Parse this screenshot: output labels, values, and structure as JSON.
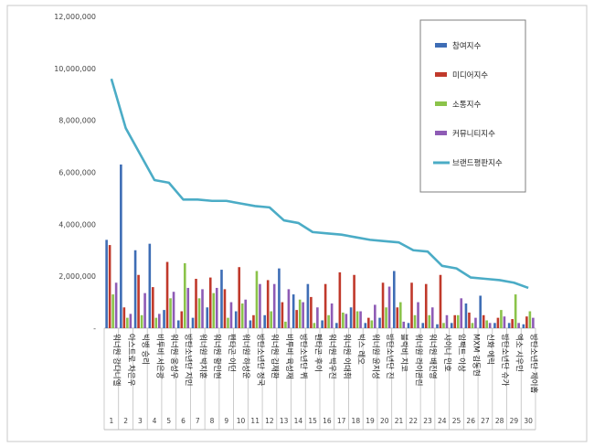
{
  "chart_data": {
    "type": "bar",
    "categories": [
      "워너원 강다니엘",
      "아스트로 차은우",
      "빅뱅 승리",
      "비투비 서은광",
      "워너원 옹성우",
      "방탄소년단 지민",
      "워너원 박지훈",
      "워너원 황민현",
      "펜타곤 이던",
      "워너원 하성운",
      "방탄소년단 정국",
      "워너원 김재환",
      "비투비 육성재",
      "방탄소년단 뷔",
      "펜타곤 후이",
      "워너원 박우진",
      "워너원 이대휘",
      "빅스 레오",
      "워너원 윤지성",
      "방탄소년단 진",
      "블락비 지코",
      "워너원 라이관린",
      "워너원 배진영",
      "샤이니 민호",
      "임팩트 이상",
      "MXM 김동현",
      "신화 에릭",
      "방탄소년단 슈가",
      "엑소 시우민",
      "방탄소년단 제이홉"
    ],
    "indices": [
      "1",
      "2",
      "3",
      "4",
      "5",
      "6",
      "7",
      "8",
      "9",
      "10",
      "11",
      "12",
      "13",
      "14",
      "15",
      "16",
      "17",
      "18",
      "19",
      "20",
      "21",
      "22",
      "23",
      "24",
      "25",
      "26",
      "27",
      "28",
      "29",
      "30"
    ],
    "ylim": [
      0,
      12000000
    ],
    "yticks": [
      "-",
      "2,000,000",
      "4,000,000",
      "6,000,000",
      "8,000,000",
      "10,000,000",
      "12,000,000"
    ],
    "ytick_values": [
      0,
      2000000,
      4000000,
      6000000,
      8000000,
      10000000,
      12000000
    ],
    "series": [
      {
        "name": "참여지수",
        "kind": "bar",
        "color": "#3e6db5",
        "values": [
          3400000,
          6300000,
          3000000,
          3250000,
          700000,
          300000,
          400000,
          800000,
          2250000,
          650000,
          300000,
          500000,
          2300000,
          1300000,
          1700000,
          300000,
          200000,
          800000,
          200000,
          400000,
          2200000,
          200000,
          200000,
          150000,
          200000,
          950000,
          1250000,
          200000,
          200000,
          150000
        ]
      },
      {
        "name": "미디어지수",
        "kind": "bar",
        "color": "#c0392b",
        "values": [
          3200000,
          800000,
          2050000,
          1580000,
          2550000,
          650000,
          1900000,
          1950000,
          1500000,
          2350000,
          500000,
          1850000,
          1000000,
          700000,
          1200000,
          1700000,
          2150000,
          2050000,
          400000,
          1750000,
          800000,
          1750000,
          1700000,
          2050000,
          500000,
          600000,
          500000,
          400000,
          350000,
          450000
        ]
      },
      {
        "name": "소통지수",
        "kind": "bar",
        "color": "#8bc34a",
        "values": [
          1300000,
          400000,
          500000,
          400000,
          1150000,
          2500000,
          1150000,
          1350000,
          400000,
          950000,
          2200000,
          650000,
          250000,
          1100000,
          200000,
          500000,
          600000,
          650000,
          300000,
          800000,
          1000000,
          500000,
          500000,
          200000,
          500000,
          200000,
          300000,
          700000,
          1300000,
          650000
        ]
      },
      {
        "name": "커뮤니티지수",
        "kind": "bar",
        "color": "#8e5bb5",
        "values": [
          1750000,
          550000,
          1350000,
          550000,
          1400000,
          1550000,
          1500000,
          1550000,
          1000000,
          1100000,
          1700000,
          1700000,
          1500000,
          1000000,
          800000,
          950000,
          550000,
          650000,
          900000,
          1600000,
          250000,
          1000000,
          800000,
          500000,
          1150000,
          400000,
          200000,
          450000,
          200000,
          400000
        ]
      },
      {
        "name": "브랜드평판지수",
        "kind": "line",
        "color": "#4bacc6",
        "values": [
          9600000,
          7700000,
          6700000,
          5700000,
          5600000,
          4950000,
          4950000,
          4900000,
          4900000,
          4800000,
          4700000,
          4650000,
          4150000,
          4050000,
          3700000,
          3650000,
          3600000,
          3500000,
          3400000,
          3350000,
          3300000,
          3000000,
          2950000,
          2400000,
          2300000,
          1950000,
          1900000,
          1850000,
          1750000,
          1550000
        ]
      }
    ],
    "legend_position": "top-right",
    "grid": false
  }
}
